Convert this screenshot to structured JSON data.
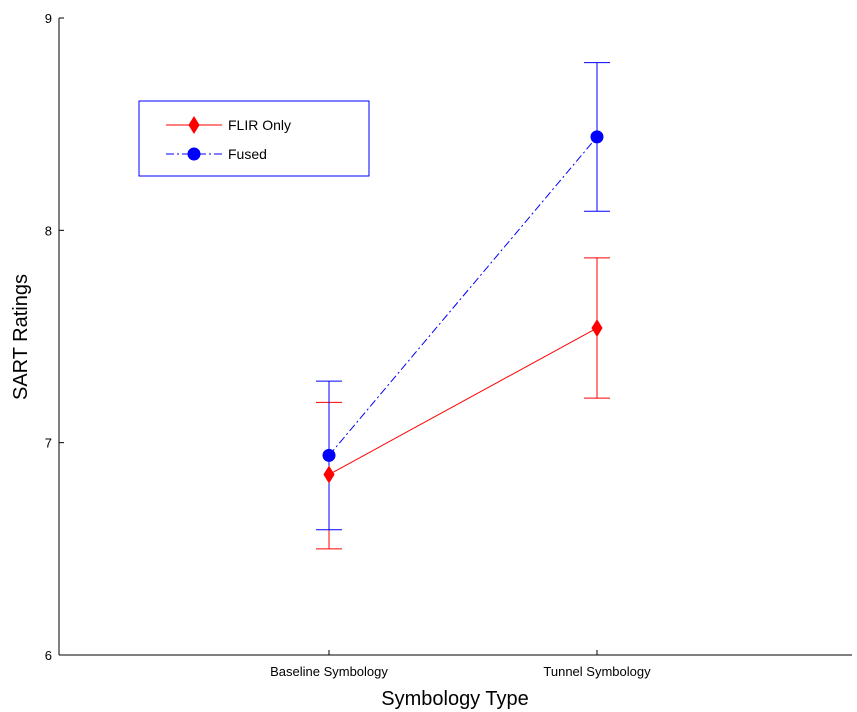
{
  "chart_data": {
    "type": "line",
    "title": "",
    "xlabel": "Symbology Type",
    "ylabel": "SART Ratings",
    "categories": [
      "Baseline Symbology",
      "Tunnel Symbology"
    ],
    "ylim": [
      6,
      9
    ],
    "yticks": [
      "6",
      "7",
      "8",
      "9"
    ],
    "grid": false,
    "legend_position": "top-left",
    "series": [
      {
        "name": "FLIR Only",
        "values": [
          6.85,
          7.54
        ],
        "error_low": [
          6.5,
          7.21
        ],
        "error_high": [
          7.19,
          7.87
        ],
        "color": "#ff0000",
        "line_style": "solid",
        "marker": "diamond"
      },
      {
        "name": "Fused",
        "values": [
          6.94,
          8.44
        ],
        "error_low": [
          6.59,
          8.09
        ],
        "error_high": [
          7.29,
          8.79
        ],
        "color": "#0000ff",
        "line_style": "dash-dot",
        "marker": "circle"
      }
    ]
  }
}
